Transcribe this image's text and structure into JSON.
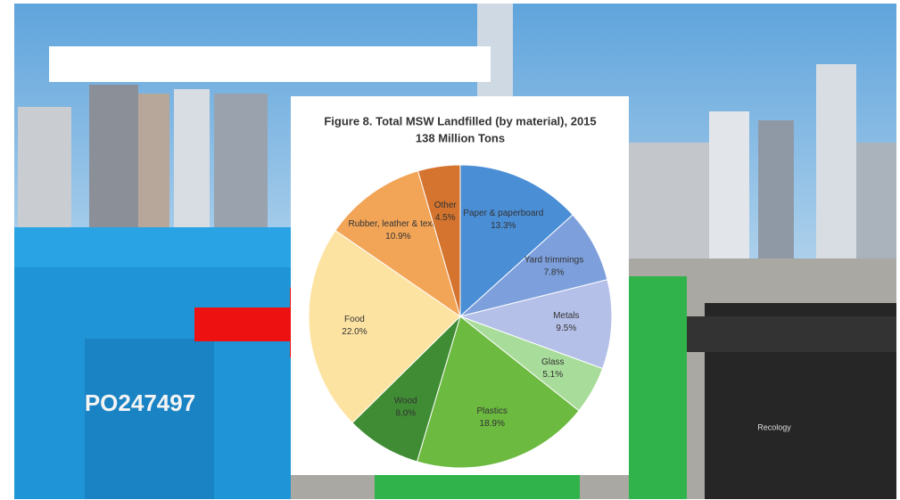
{
  "chart_data": {
    "type": "pie",
    "title": "Figure 8. Total MSW Landfilled (by material), 2015",
    "subtitle": "138 Million Tons",
    "categories": [
      "Paper & paperboard",
      "Yard trimmings",
      "Metals",
      "Glass",
      "Plastics",
      "Wood",
      "Food",
      "Rubber, leather & textiles",
      "Other"
    ],
    "values": [
      13.3,
      7.8,
      9.5,
      5.1,
      18.9,
      8.0,
      22.0,
      10.9,
      4.5
    ],
    "value_labels": [
      "13.3%",
      "7.8%",
      "9.5%",
      "5.1%",
      "18.9%",
      "8.0%",
      "22.0%",
      "10.9%",
      "4.5%"
    ],
    "colors": [
      "#4a8ed6",
      "#7d9fdc",
      "#b4c0e8",
      "#a8dc9a",
      "#6cba40",
      "#3f8c34",
      "#fde3a2",
      "#f2a457",
      "#d4742e"
    ]
  },
  "photo_labels": [
    "PO247497",
    "Recology"
  ]
}
